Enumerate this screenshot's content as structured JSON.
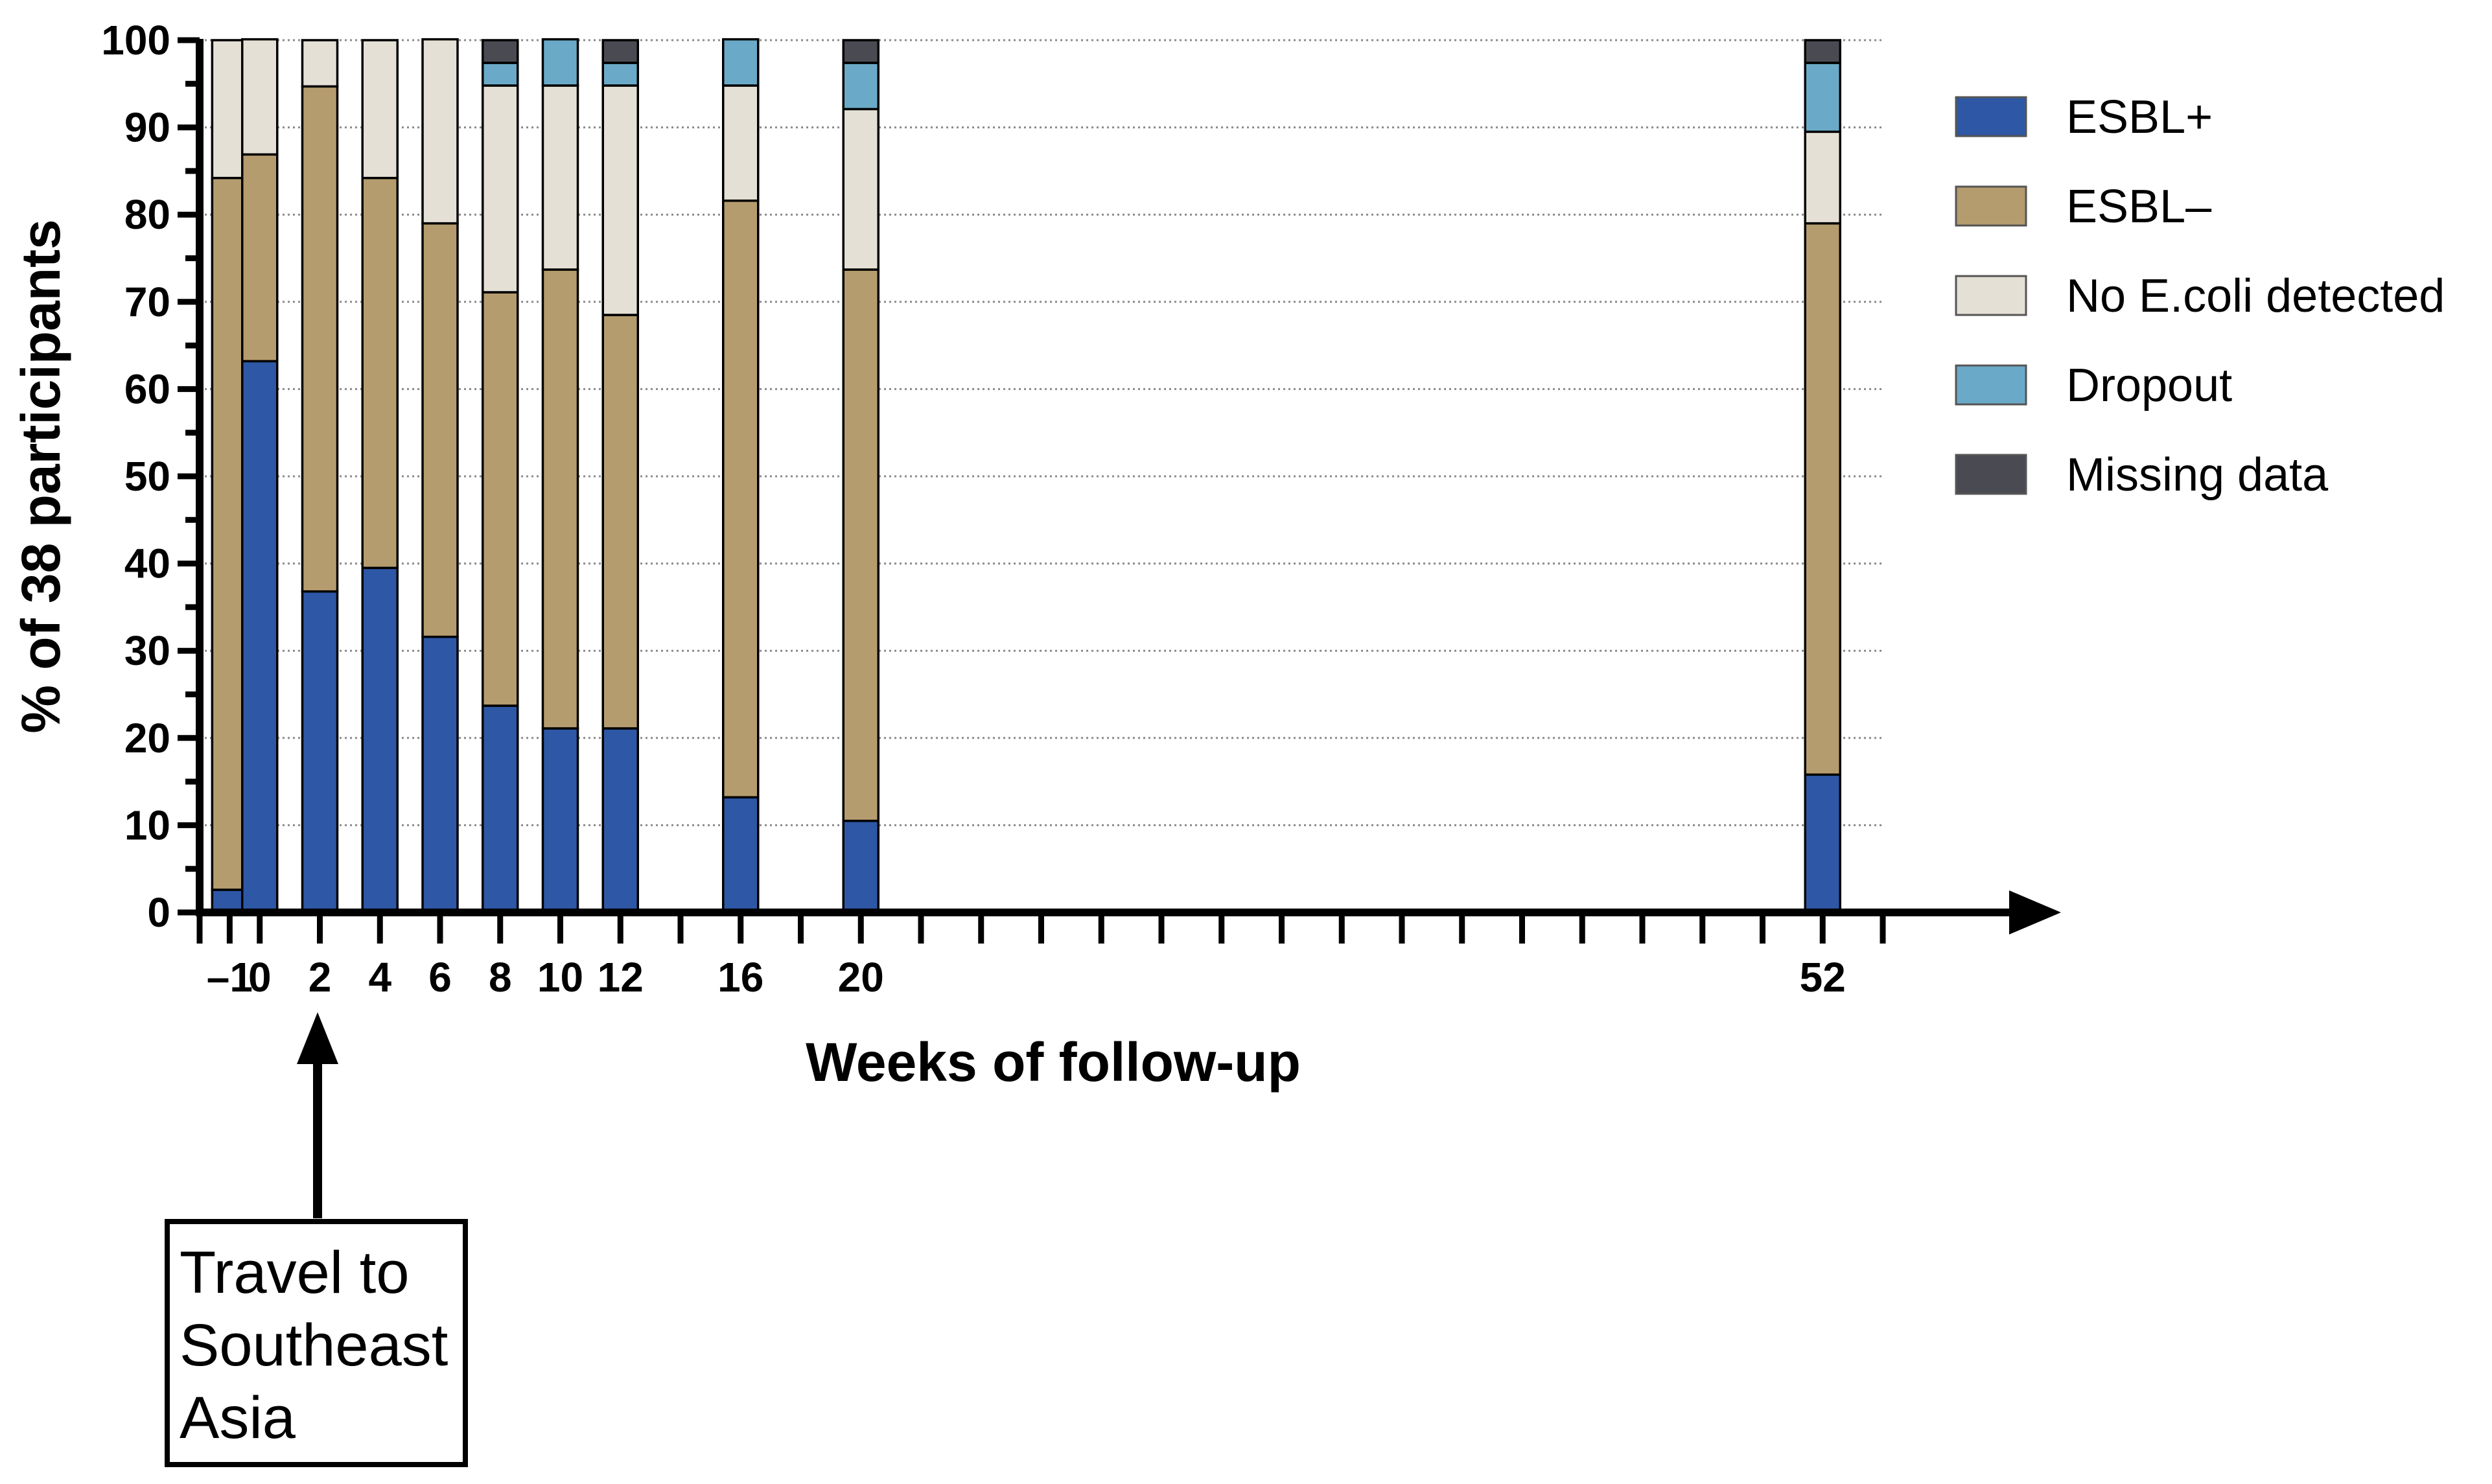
{
  "chart_data": {
    "type": "bar",
    "stacked": true,
    "ylabel": "% of 38 participants",
    "xlabel": "Weeks of follow-up",
    "ylim": [
      0,
      100
    ],
    "yticks": [
      0,
      10,
      20,
      30,
      40,
      50,
      60,
      70,
      80,
      90,
      100
    ],
    "x_axis": {
      "min": -2,
      "max": 54,
      "minor_step": 2
    },
    "grid": {
      "y_major": "dotted",
      "x": false
    },
    "legend_position": "right",
    "categories": [
      "–1",
      "0",
      "2",
      "4",
      "6",
      "8",
      "10",
      "12",
      "16",
      "20",
      "52"
    ],
    "x": [
      -1,
      0,
      2,
      4,
      6,
      8,
      10,
      12,
      16,
      20,
      52
    ],
    "series": [
      {
        "name": "ESBL+",
        "color": "#2E57A5",
        "values": [
          2.6,
          63.2,
          36.8,
          39.5,
          31.6,
          23.7,
          21.1,
          21.1,
          13.2,
          10.5,
          15.8
        ]
      },
      {
        "name": "ESBL–",
        "color": "#B59C6E",
        "values": [
          81.6,
          23.7,
          57.9,
          44.7,
          47.4,
          47.4,
          52.6,
          47.4,
          68.4,
          63.2,
          63.2
        ]
      },
      {
        "name": "No E.coli detected",
        "color": "#E5E0D5",
        "values": [
          15.8,
          13.2,
          5.3,
          15.8,
          21.1,
          23.7,
          21.1,
          26.3,
          13.2,
          18.4,
          10.5
        ]
      },
      {
        "name": "Dropout",
        "color": "#6AAAC8",
        "values": [
          0,
          0,
          0,
          0,
          0,
          2.6,
          5.3,
          2.6,
          5.3,
          5.3,
          7.9
        ]
      },
      {
        "name": "Missing data",
        "color": "#4A4B52",
        "values": [
          0,
          0,
          0,
          0,
          0,
          2.6,
          0,
          2.6,
          0,
          2.6,
          2.6
        ]
      }
    ],
    "annotation": {
      "text_lines": [
        "Travel to",
        "Southeast",
        "Asia"
      ]
    }
  }
}
